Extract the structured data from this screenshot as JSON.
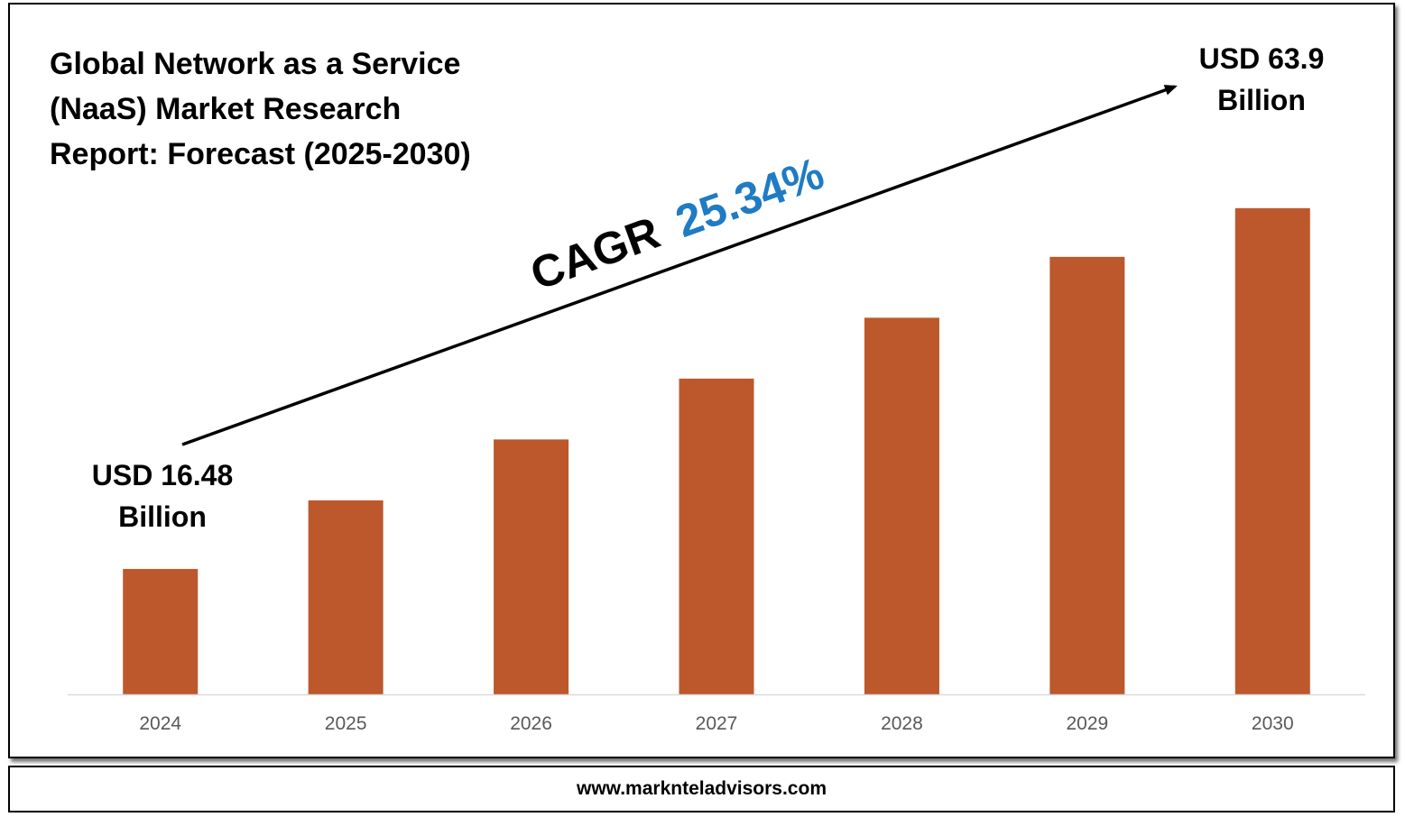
{
  "title_lines": [
    "Global Network as a Service",
    "(NaaS) Market Research",
    "Report: Forecast (2025-2030)"
  ],
  "cagr": {
    "label": "CAGR",
    "value": "25.34%",
    "value_color": "#1f7bc4"
  },
  "start_annotation": {
    "line1": "USD 16.48",
    "line2": "Billion"
  },
  "end_annotation": {
    "line1": "USD 63.9",
    "line2": "Billion"
  },
  "footer": {
    "url": "www.marknteladvisors.com"
  },
  "colors": {
    "bar": "#bc582c",
    "axis": "#d9d9d9",
    "tick_text": "#595959",
    "text": "#000000"
  },
  "chart_data": {
    "type": "bar",
    "categories": [
      "2024",
      "2025",
      "2026",
      "2027",
      "2028",
      "2029",
      "2030"
    ],
    "values": [
      16.48,
      25.5,
      33.5,
      41.5,
      49.5,
      57.5,
      63.9
    ],
    "ylim": [
      0,
      80
    ],
    "grid": false,
    "xlabel": "",
    "ylabel": ""
  }
}
